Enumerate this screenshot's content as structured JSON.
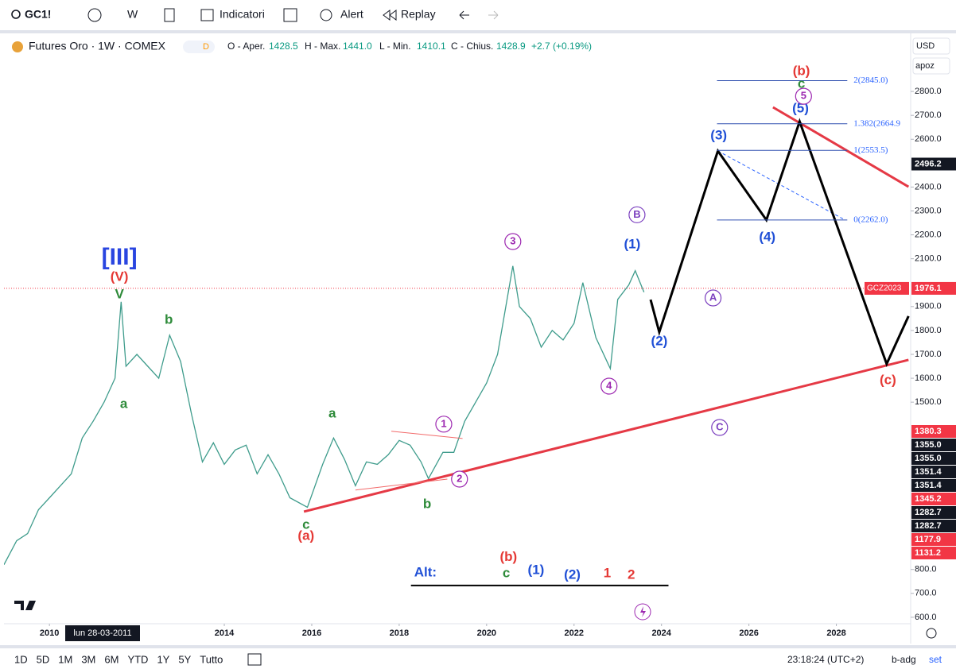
{
  "toolbar": {
    "symbol": "GC1!",
    "interval": "W",
    "indicators": "Indicatori",
    "alert": "Alert",
    "replay": "Replay"
  },
  "legend": {
    "title": "Futures Oro · 1W · COMEX",
    "badge": "D",
    "open_label": "O - Aper.",
    "open": "1428.5",
    "high_label": "H - Max.",
    "high": "1441.0",
    "low_label": "L - Min.",
    "low": "1410.1",
    "close_label": "C - Chius.",
    "close": "1428.9",
    "change": "+2.7 (+0.19%)"
  },
  "scale_controls": {
    "currency": "USD",
    "mode": "apoz"
  },
  "chart_data": {
    "type": "line",
    "xlim": [
      2008.96,
      2029.7
    ],
    "ylim": [
      573,
      3043
    ],
    "xticks": [
      2010,
      2014,
      2016,
      2018,
      2020,
      2022,
      2024,
      2026,
      2028
    ],
    "crosshair_label": "lun 28-03-2011",
    "yticks": [
      {
        "value": 600,
        "label": "600.0"
      },
      {
        "value": 700,
        "label": "700.0"
      },
      {
        "value": 800,
        "label": "800.0"
      },
      {
        "value": 1500,
        "label": "1500.0"
      },
      {
        "value": 1600,
        "label": "1600.0"
      },
      {
        "value": 1700,
        "label": "1700.0"
      },
      {
        "value": 1800,
        "label": "1800.0"
      },
      {
        "value": 1900,
        "label": "1900.0"
      },
      {
        "value": 2100,
        "label": "2100.0"
      },
      {
        "value": 2200,
        "label": "2200.0"
      },
      {
        "value": 2300,
        "label": "2300.0"
      },
      {
        "value": 2400,
        "label": "2400.0"
      },
      {
        "value": 2600,
        "label": "2600.0"
      },
      {
        "value": 2700,
        "label": "2700.0"
      },
      {
        "value": 2800,
        "label": "2800.0"
      }
    ],
    "series": [
      {
        "color": "#3f9c8c",
        "x": [
          2008.96,
          2009.25,
          2009.5,
          2009.75,
          2010.0,
          2010.25,
          2010.5,
          2010.75,
          2011.0,
          2011.25,
          2011.5,
          2011.64,
          2011.75,
          2012.0,
          2012.25,
          2012.5,
          2012.75,
          2013.0,
          2013.25,
          2013.5,
          2013.75,
          2014.0,
          2014.25,
          2014.5,
          2014.75,
          2015.0,
          2015.25,
          2015.5,
          2015.9,
          2016.25,
          2016.5,
          2016.75,
          2017.0,
          2017.25,
          2017.5,
          2017.75,
          2018.0,
          2018.25,
          2018.5,
          2018.67,
          2019.0,
          2019.25,
          2019.5,
          2019.75,
          2020.0,
          2020.25,
          2020.6,
          2020.75,
          2021.0,
          2021.25,
          2021.5,
          2021.75,
          2022.0,
          2022.2,
          2022.5,
          2022.83,
          2023.0,
          2023.25,
          2023.4,
          2023.6
        ],
        "values": [
          820,
          920,
          950,
          1050,
          1100,
          1150,
          1200,
          1350,
          1420,
          1500,
          1600,
          1920,
          1650,
          1700,
          1650,
          1600,
          1780,
          1670,
          1450,
          1250,
          1330,
          1240,
          1300,
          1320,
          1200,
          1280,
          1200,
          1100,
          1060,
          1240,
          1350,
          1260,
          1150,
          1250,
          1240,
          1280,
          1340,
          1320,
          1250,
          1180,
          1290,
          1290,
          1420,
          1500,
          1580,
          1700,
          2070,
          1900,
          1850,
          1730,
          1800,
          1760,
          1830,
          2000,
          1770,
          1640,
          1930,
          1990,
          2050,
          1960
        ]
      }
    ],
    "current_price": {
      "symbol": "GCZ2023",
      "value": 1976.1,
      "label": "1976.1",
      "color": "#f23645"
    },
    "price_tags": [
      {
        "value": 2496.2,
        "label": "2496.2",
        "color": "#131722"
      }
    ],
    "stacked_tags": [
      {
        "value": 1380.3,
        "label": "1380.3",
        "color": "#f23645"
      },
      {
        "value": 1355.0,
        "label": "1355.0",
        "color": "#131722"
      },
      {
        "value": 1355.0,
        "label": "1355.0",
        "color": "#131722"
      },
      {
        "value": 1351.4,
        "label": "1351.4",
        "color": "#131722"
      },
      {
        "value": 1351.4,
        "label": "1351.4",
        "color": "#131722"
      },
      {
        "value": 1345.2,
        "label": "1345.2",
        "color": "#f23645"
      },
      {
        "value": 1282.7,
        "label": "1282.7",
        "color": "#131722"
      },
      {
        "value": 1282.7,
        "label": "1282.7",
        "color": "#131722"
      },
      {
        "value": 1177.9,
        "label": "1177.9",
        "color": "#f23645"
      },
      {
        "value": 1131.2,
        "label": "1131.2",
        "color": "#f23645"
      }
    ],
    "fib_levels": [
      {
        "value": 2845.0,
        "label": "2(2845.0)"
      },
      {
        "value": 2664.9,
        "label": "1.382(2664.9"
      },
      {
        "value": 2553.5,
        "label": "1(2553.5)"
      },
      {
        "value": 2262.0,
        "label": "0(2262.0)"
      }
    ],
    "fib_x": [
      2025.27,
      2028.25
    ],
    "projection": {
      "color": "#000000",
      "x": [
        2023.75,
        2023.95,
        2025.29,
        2026.4,
        2027.16,
        2029.15,
        2029.65
      ],
      "values": [
        1929,
        1793,
        2551,
        2262,
        2674,
        1660,
        1860
      ]
    },
    "dashed_line": {
      "color": "#2962ff",
      "x": [
        2025.29,
        2028.2
      ],
      "values": [
        2551,
        2262
      ]
    },
    "trend_lines": [
      {
        "color": "#e53945",
        "x": [
          2015.82,
          2029.65
        ],
        "values": [
          1042,
          1677
        ]
      },
      {
        "color": "#e53945",
        "x": [
          2026.55,
          2029.65
        ],
        "values": [
          2734,
          2401
        ]
      },
      {
        "color": "#f26b6b",
        "x": [
          2017.82,
          2019.45
        ],
        "values": [
          1378,
          1348
        ]
      },
      {
        "color": "#f26b6b",
        "x": [
          2017.0,
          2019.1
        ],
        "values": [
          1132,
          1178
        ]
      }
    ],
    "annotations": [
      {
        "text": "[III]",
        "x": 2011.6,
        "y": 2102,
        "color": "#2945e0"
      },
      {
        "text": "(V)",
        "x": 2011.6,
        "y": 2022,
        "color": "#e53935"
      },
      {
        "text": "V",
        "x": 2011.6,
        "y": 1949,
        "color": "#2e8b3a"
      },
      {
        "text": "a",
        "x": 2011.7,
        "y": 1490,
        "color": "#2e8b3a"
      },
      {
        "text": "b",
        "x": 2012.73,
        "y": 1843,
        "color": "#2e8b3a"
      },
      {
        "text": "a",
        "x": 2016.47,
        "y": 1451,
        "color": "#2e8b3a"
      },
      {
        "text": "c",
        "x": 2015.87,
        "y": 985,
        "color": "#2e8b3a"
      },
      {
        "text": "(a)",
        "x": 2015.87,
        "y": 939,
        "color": "#e53935"
      },
      {
        "text": "b",
        "x": 2018.64,
        "y": 1072,
        "color": "#2e8b3a"
      },
      {
        "text": "1",
        "x": 2019.02,
        "y": 1408,
        "color": "#9c27b0",
        "circled": true
      },
      {
        "text": "2",
        "x": 2019.38,
        "y": 1178,
        "color": "#9c27b0",
        "circled": true
      },
      {
        "text": "3",
        "x": 2020.6,
        "y": 2172,
        "color": "#9c27b0",
        "circled": true
      },
      {
        "text": "4",
        "x": 2022.8,
        "y": 1567,
        "color": "#9c27b0",
        "circled": true
      },
      {
        "text": "B",
        "x": 2023.44,
        "y": 2284,
        "color": "#7b3fbf",
        "circled": true
      },
      {
        "text": "(1)",
        "x": 2023.33,
        "y": 2159,
        "color": "#1f4fd6"
      },
      {
        "text": "(2)",
        "x": 2023.95,
        "y": 1753,
        "color": "#1f4fd6"
      },
      {
        "text": "A",
        "x": 2025.18,
        "y": 1936,
        "color": "#7b3fbf",
        "circled": true
      },
      {
        "text": "(3)",
        "x": 2025.31,
        "y": 2614,
        "color": "#1f4fd6"
      },
      {
        "text": "(4)",
        "x": 2026.42,
        "y": 2188,
        "color": "#1f4fd6"
      },
      {
        "text": "(5)",
        "x": 2027.18,
        "y": 2727,
        "color": "#1f4fd6"
      },
      {
        "text": "5",
        "x": 2027.25,
        "y": 2780,
        "color": "#9c27b0",
        "circled": true
      },
      {
        "text": "c",
        "x": 2027.2,
        "y": 2830,
        "color": "#2e8b3a"
      },
      {
        "text": "(b)",
        "x": 2027.2,
        "y": 2883,
        "color": "#e53935"
      },
      {
        "text": "C",
        "x": 2025.33,
        "y": 1394,
        "color": "#7b3fbf",
        "circled": true
      },
      {
        "text": "(c)",
        "x": 2029.18,
        "y": 1590,
        "color": "#e53935"
      },
      {
        "text": "Alt:",
        "x": 2018.6,
        "y": 786,
        "color": "#1f4fd6"
      },
      {
        "text": "(b)",
        "x": 2020.5,
        "y": 850,
        "color": "#e53935"
      },
      {
        "text": "c",
        "x": 2020.45,
        "y": 783,
        "color": "#2e8b3a"
      },
      {
        "text": "(1)",
        "x": 2021.13,
        "y": 796,
        "color": "#1f4fd6"
      },
      {
        "text": "(2)",
        "x": 2021.96,
        "y": 776,
        "color": "#1f4fd6"
      },
      {
        "text": "1",
        "x": 2022.76,
        "y": 783,
        "color": "#e53935"
      },
      {
        "text": "2",
        "x": 2023.31,
        "y": 776,
        "color": "#e53935"
      }
    ],
    "alt_line": {
      "color": "#000000",
      "x": [
        2018.27,
        2024.16
      ],
      "values": [
        733,
        733
      ]
    }
  },
  "ranges": [
    "1D",
    "5D",
    "1M",
    "3M",
    "6M",
    "YTD",
    "1Y",
    "5Y",
    "Tutto"
  ],
  "status": {
    "time": "23:18:24 (UTC+2)",
    "adj": "b-adg",
    "settings": "set"
  }
}
